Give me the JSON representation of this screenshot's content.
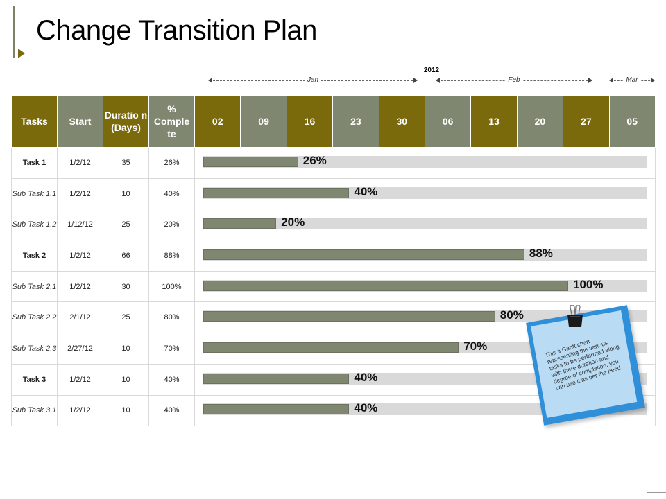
{
  "title": "Change Transition Plan",
  "timeline": {
    "year": "2012",
    "months": [
      "Jan",
      "Feb",
      "Mar"
    ]
  },
  "table": {
    "headers": {
      "tasks": "Tasks",
      "start": "Start",
      "duration": "Duratio n (Days)",
      "complete": "% Comple te"
    },
    "weeks": [
      "02",
      "09",
      "16",
      "23",
      "30",
      "06",
      "13",
      "20",
      "27",
      "05"
    ],
    "rows": [
      {
        "task": "Task 1",
        "sub": false,
        "start": "1/2/12",
        "duration": "35",
        "complete": "26%"
      },
      {
        "task": "Sub Task 1.1",
        "sub": true,
        "start": "1/2/12",
        "duration": "10",
        "complete": "40%"
      },
      {
        "task": "Sub Task 1.2",
        "sub": true,
        "start": "1/12/12",
        "duration": "25",
        "complete": "20%"
      },
      {
        "task": "Task 2",
        "sub": false,
        "start": "1/2/12",
        "duration": "66",
        "complete": "88%"
      },
      {
        "task": "Sub Task 2.1",
        "sub": true,
        "start": "1/2/12",
        "duration": "30",
        "complete": "100%"
      },
      {
        "task": "Sub Task 2.2",
        "sub": true,
        "start": "2/1/12",
        "duration": "25",
        "complete": "80%"
      },
      {
        "task": "Sub Task 2.3",
        "sub": true,
        "start": "2/27/12",
        "duration": "10",
        "complete": "70%"
      },
      {
        "task": "Task 3",
        "sub": false,
        "start": "1/2/12",
        "duration": "10",
        "complete": "40%"
      },
      {
        "task": "Sub Task 3.1",
        "sub": true,
        "start": "1/2/12",
        "duration": "10",
        "complete": "40%"
      }
    ]
  },
  "chart_data": {
    "type": "bar",
    "categories": [
      "Task 1",
      "Sub Task 1.1",
      "Sub Task 1.2",
      "Task 2",
      "Sub Task 2.1",
      "Sub Task 2.2",
      "Sub Task 2.3",
      "Task 3",
      "Sub Task 3.1"
    ],
    "values": [
      26,
      40,
      20,
      88,
      100,
      80,
      70,
      40,
      40
    ],
    "labels": [
      "26%",
      "40%",
      "20%",
      "88%",
      "100%",
      "80%",
      "70%",
      "40%",
      "40%"
    ],
    "orientation": "horizontal",
    "xlim": [
      0,
      100
    ],
    "colors": {
      "fill": "#7f8770",
      "track": "#d9d9d9",
      "header_olive": "#7b6a0c",
      "header_gray": "#7f8770"
    }
  },
  "note": {
    "text": "This a Gantt chart representing the various tasks to be performed along with there duration and degree of completion, you can use it as per the need."
  }
}
